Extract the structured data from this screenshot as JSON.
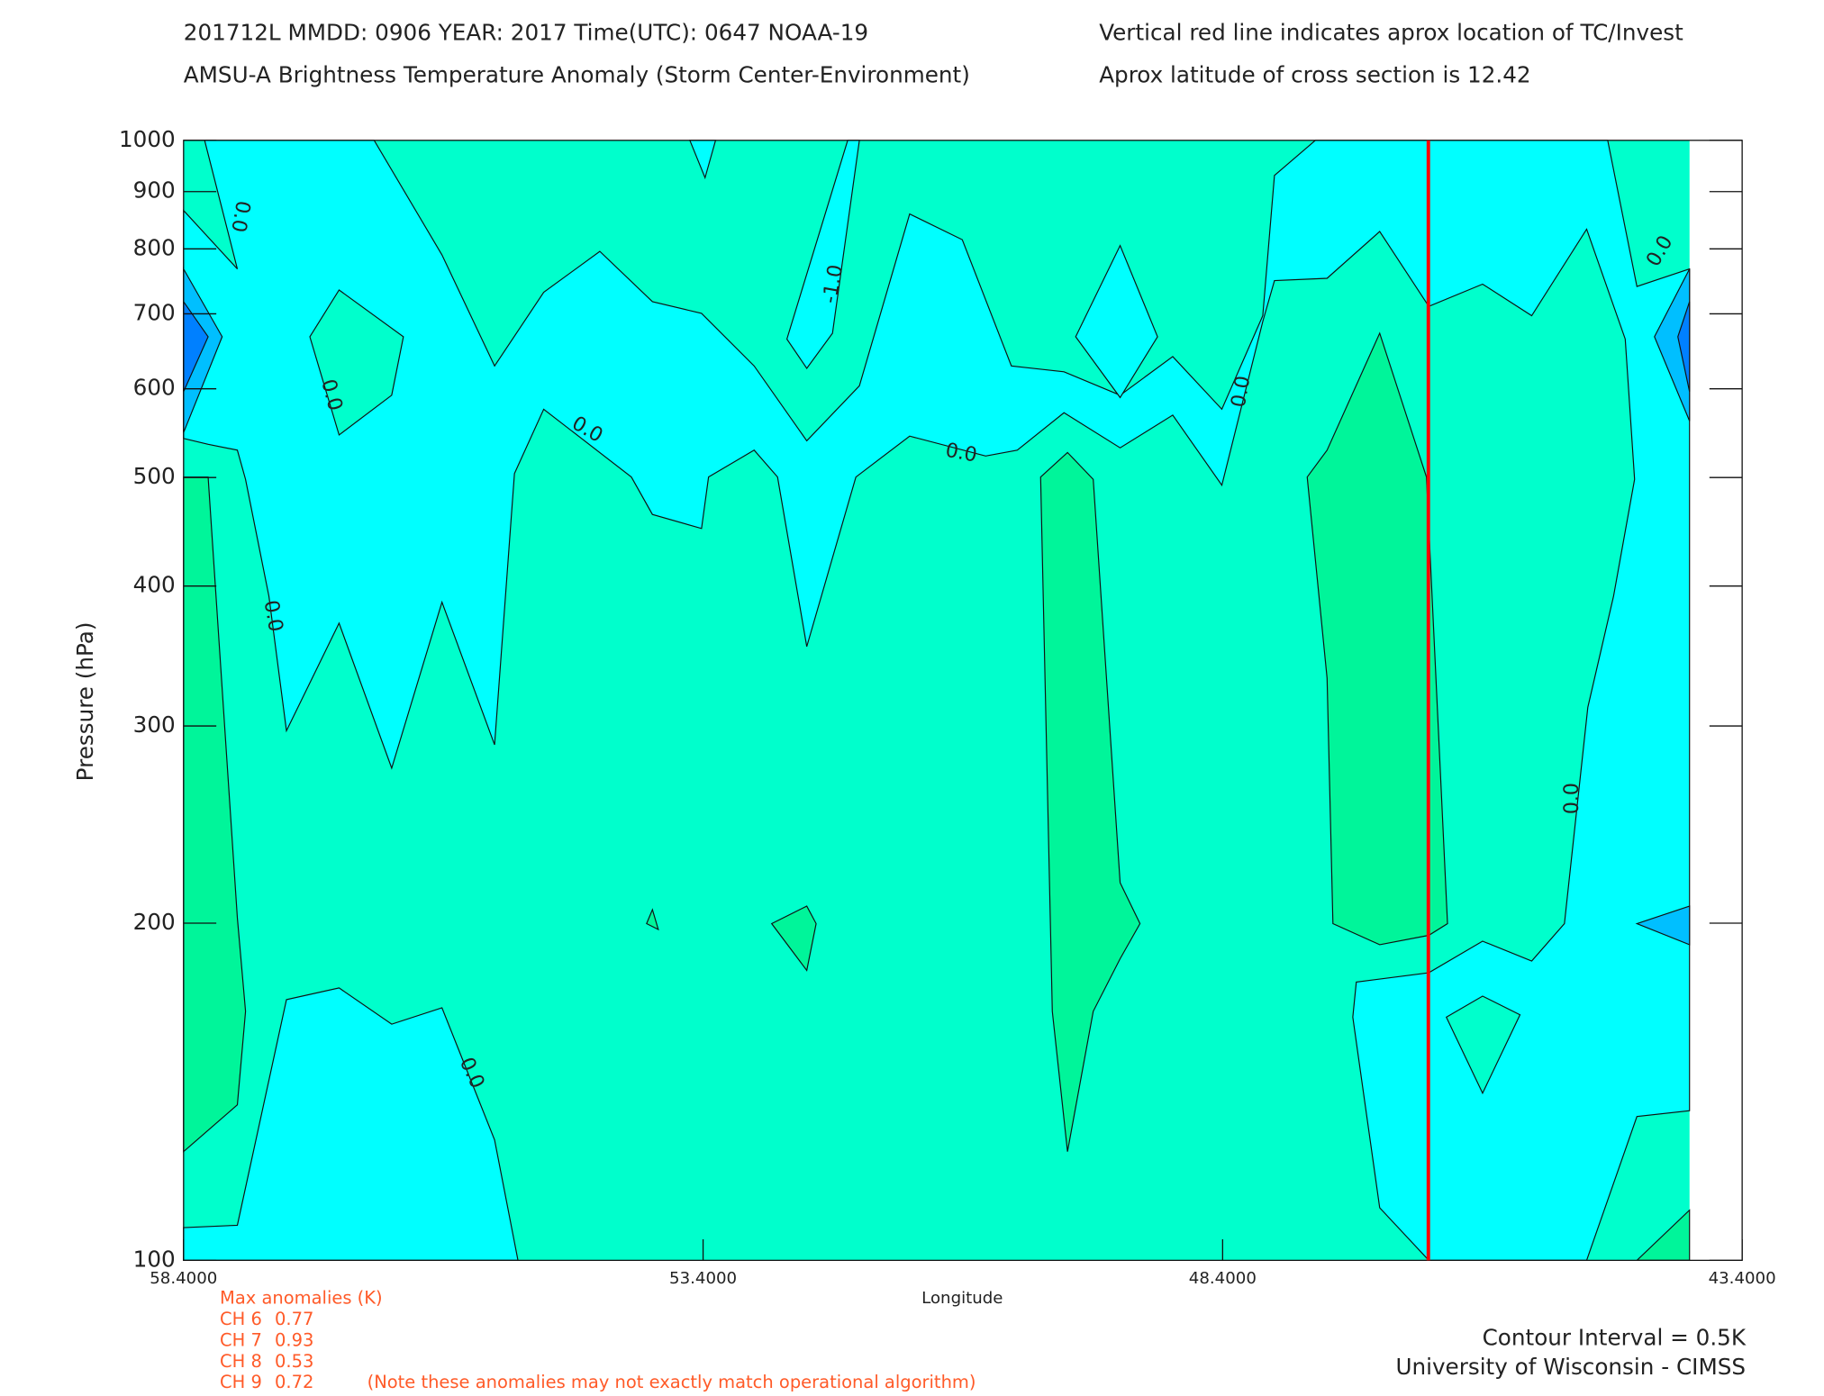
{
  "chart_data": {
    "type": "contour",
    "title": "201712L  MMDD: 0906 YEAR: 2017 Time(UTC): 0647 NOAA-19",
    "subtitle": "AMSU-A Brightness Temperature Anomaly (Storm Center-Environment)",
    "annotations": [
      "Vertical red line indicates aprox location of TC/Invest",
      "Aprox latitude of cross section is 12.42"
    ],
    "xlabel": "Longitude",
    "ylabel": "Pressure (hPa)",
    "xlim": [
      58.4,
      43.4
    ],
    "xticks": [
      {
        "value": 58.4,
        "label": "58.4000"
      },
      {
        "value": 53.4,
        "label": "53.4000"
      },
      {
        "value": 48.4,
        "label": "48.4000"
      },
      {
        "value": 43.4,
        "label": "43.4000"
      }
    ],
    "ylim": [
      100,
      1000
    ],
    "yticks": [
      100,
      200,
      300,
      400,
      500,
      600,
      700,
      800,
      900,
      1000
    ],
    "log_y": true,
    "marker_longitude": 46.42,
    "marker_color": "#ff0000",
    "contour_labels": [
      "0.0",
      "0.0",
      "0.0",
      "-1.0",
      "0.0",
      "0.0",
      "0.0",
      "0.0",
      "0.0",
      "0.0"
    ],
    "max_anomalies": {
      "title": "Max anomalies (K)",
      "channels": [
        {
          "name": "CH 6",
          "value": 0.77
        },
        {
          "name": "CH 7",
          "value": 0.93
        },
        {
          "name": "CH 8",
          "value": 0.53
        },
        {
          "name": "CH 9",
          "value": 0.72
        }
      ],
      "note": "(Note these anomalies may not exactly match operational algorithm)"
    },
    "credits": [
      "Contour Interval = 0.5K",
      "University of Wisconsin - CIMSS"
    ]
  }
}
